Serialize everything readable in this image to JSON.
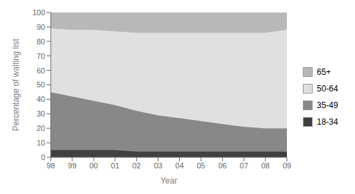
{
  "chart_data": {
    "type": "area",
    "stacked": true,
    "xlabel": "Year",
    "ylabel": "Percentage of waiting list",
    "categories": [
      "98",
      "99",
      "00",
      "01",
      "02",
      "03",
      "04",
      "05",
      "06",
      "07",
      "08",
      "09"
    ],
    "series": [
      {
        "name": "18-34",
        "color": "#404040",
        "values": [
          5,
          5,
          5,
          5,
          4,
          4,
          4,
          4,
          4,
          4,
          4,
          4
        ]
      },
      {
        "name": "35-49",
        "color": "#888888",
        "values": [
          40,
          37,
          34,
          31,
          28,
          25,
          23,
          21,
          19,
          17,
          16,
          16
        ]
      },
      {
        "name": "50-64",
        "color": "#e0e0e0",
        "values": [
          44,
          46,
          49,
          51,
          54,
          57,
          59,
          61,
          63,
          65,
          66,
          68
        ]
      },
      {
        "name": "65+",
        "color": "#b8b8b8",
        "values": [
          11,
          12,
          12,
          13,
          14,
          14,
          14,
          14,
          14,
          14,
          14,
          12
        ]
      }
    ],
    "ylim": [
      0,
      100
    ],
    "yticks": [
      0,
      10,
      20,
      30,
      40,
      50,
      60,
      70,
      80,
      90,
      100
    ],
    "grid": false,
    "legend": "right"
  }
}
